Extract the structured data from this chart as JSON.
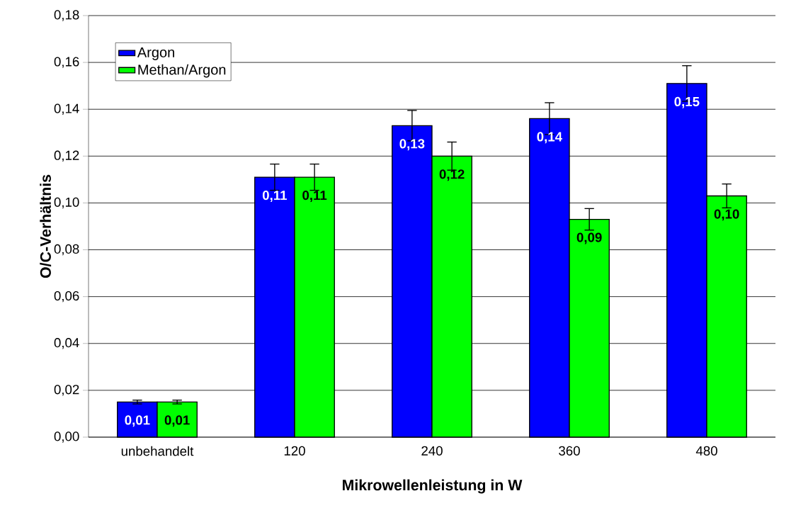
{
  "chart_data": {
    "type": "bar",
    "xlabel": "Mikrowellenleistung in W",
    "ylabel": "O/C-Verhältnis",
    "categories": [
      "unbehandelt",
      "120",
      "240",
      "360",
      "480"
    ],
    "series": [
      {
        "name": "Argon",
        "color": "#0000ff",
        "values": [
          0.015,
          0.111,
          0.133,
          0.136,
          0.151
        ],
        "errors": [
          0.0008,
          0.0056,
          0.0065,
          0.0068,
          0.0076
        ],
        "value_labels": [
          "0,01",
          "0,11",
          "0,13",
          "0,14",
          "0,15"
        ]
      },
      {
        "name": "Methan/Argon",
        "color": "#00ff00",
        "values": [
          0.015,
          0.111,
          0.12,
          0.093,
          0.103
        ],
        "errors": [
          0.0008,
          0.0056,
          0.006,
          0.0046,
          0.0051
        ],
        "value_labels": [
          "0,01",
          "0,11",
          "0,12",
          "0,09",
          "0,10"
        ]
      }
    ],
    "ylim": [
      0,
      0.18
    ],
    "yticks": [
      {
        "value": 0,
        "label": "0,00"
      },
      {
        "value": 0.02,
        "label": "0,02"
      },
      {
        "value": 0.04,
        "label": "0,04"
      },
      {
        "value": 0.06,
        "label": "0,06"
      },
      {
        "value": 0.08,
        "label": "0,08"
      },
      {
        "value": 0.1,
        "label": "0,10"
      },
      {
        "value": 0.12,
        "label": "0,12"
      },
      {
        "value": 0.14,
        "label": "0,14"
      },
      {
        "value": 0.16,
        "label": "0,16"
      },
      {
        "value": 0.18,
        "label": "0,18"
      }
    ],
    "grid": "y",
    "legend": "top left"
  }
}
